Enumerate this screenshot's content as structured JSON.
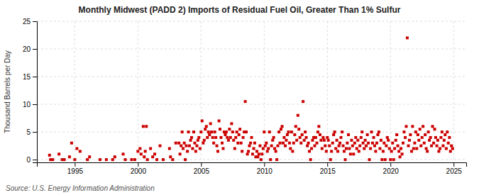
{
  "chart_data": {
    "type": "scatter",
    "title": "Monthly Midwest (PADD 2) Imports of Residual Fuel Oil, Greater Than 1% Sulfur",
    "ylabel": "Thousand Barrels per Day",
    "source": "Source: U.S. Energy Information Administration",
    "color": "#cc0000",
    "marker": "square",
    "grid": true,
    "xlim": [
      1992.0,
      2026.0
    ],
    "ylim": [
      -0.5,
      25
    ],
    "xticks": [
      1995,
      2000,
      2005,
      2010,
      2015,
      2020,
      2025
    ],
    "yticks": [
      0,
      5,
      10,
      15,
      20,
      25
    ],
    "x": [
      1993.0,
      1993.75,
      1994.58,
      1994.75,
      1995.17,
      1995.42,
      1996.17,
      1997.0,
      1998.17,
      1998.83,
      1999.5,
      2000.0,
      2000.17,
      2000.25,
      2000.42,
      2000.5,
      2000.58,
      2000.67,
      2001.0,
      2001.17,
      2001.33,
      2001.75,
      2002.5,
      2002.58,
      2003.0,
      2003.25,
      2003.33,
      2003.42,
      2003.5,
      2003.58,
      2003.67,
      2003.83,
      2003.92,
      2004.0,
      2004.08,
      2004.17,
      2004.25,
      2004.33,
      2004.42,
      2004.5,
      2004.58,
      2004.67,
      2004.75,
      2004.83,
      2004.92,
      2005.0,
      2005.08,
      2005.17,
      2005.25,
      2005.33,
      2005.42,
      2005.5,
      2005.58,
      2005.67,
      2005.75,
      2005.83,
      2005.92,
      2006.0,
      2006.08,
      2006.17,
      2006.25,
      2006.33,
      2006.42,
      2006.5,
      2006.58,
      2006.67,
      2006.75,
      2006.83,
      2006.92,
      2007.0,
      2007.08,
      2007.17,
      2007.25,
      2007.33,
      2007.42,
      2007.5,
      2007.58,
      2007.67,
      2007.75,
      2007.83,
      2007.92,
      2008.0,
      2008.08,
      2008.17,
      2008.25,
      2008.33,
      2008.42,
      2008.5,
      2008.58,
      2008.67,
      2008.75,
      2008.83,
      2008.92,
      2009.0,
      2009.08,
      2009.17,
      2009.25,
      2009.33,
      2009.42,
      2009.5,
      2009.58,
      2009.67,
      2009.83,
      2009.92,
      2010.0,
      2010.08,
      2010.17,
      2010.25,
      2010.33,
      2010.42,
      2010.58,
      2010.67,
      2010.75,
      2010.83,
      2010.92,
      2011.08,
      2011.17,
      2011.25,
      2011.33,
      2011.42,
      2011.5,
      2011.58,
      2011.67,
      2011.75,
      2011.83,
      2011.92,
      2012.0,
      2012.08,
      2012.17,
      2012.25,
      2012.33,
      2012.42,
      2012.5,
      2012.58,
      2012.67,
      2012.75,
      2012.83,
      2012.92,
      2013.0,
      2013.08,
      2013.17,
      2013.25,
      2013.33,
      2013.42,
      2013.5,
      2013.58,
      2013.75,
      2013.83,
      2013.92,
      2014.0,
      2014.08,
      2014.17,
      2014.25,
      2014.33,
      2014.42,
      2014.5,
      2014.58,
      2014.67,
      2014.75,
      2014.83,
      2014.92,
      2015.0,
      2015.08,
      2015.17,
      2015.33,
      2015.42,
      2015.5,
      2015.58,
      2015.67,
      2015.75,
      2015.83,
      2015.92,
      2016.0,
      2016.08,
      2016.17,
      2016.25,
      2016.33,
      2016.5,
      2016.58,
      2016.67,
      2016.75,
      2016.83,
      2016.92,
      2017.0,
      2017.08,
      2017.17,
      2017.25,
      2017.33,
      2017.42,
      2017.5,
      2017.58,
      2017.67,
      2017.75,
      2017.83,
      2017.92,
      2018.0,
      2018.08,
      2018.17,
      2018.25,
      2018.42,
      2018.5,
      2018.58,
      2018.67,
      2018.75,
      2018.83,
      2018.92,
      2019.0,
      2019.08,
      2019.17,
      2019.25,
      2019.42,
      2019.5,
      2019.67,
      2019.75,
      2019.83,
      2019.92,
      2020.08,
      2020.17,
      2020.33,
      2020.42,
      2020.5,
      2020.58,
      2020.67,
      2020.75,
      2020.83,
      2020.92,
      2021.0,
      2021.08,
      2021.17,
      2021.25,
      2021.33,
      2021.42,
      2021.5,
      2021.58,
      2021.67,
      2021.75,
      2021.83,
      2021.92,
      2022.0,
      2022.08,
      2022.17,
      2022.25,
      2022.33,
      2022.42,
      2022.5,
      2022.58,
      2022.67,
      2022.75,
      2022.83,
      2022.92,
      2023.0,
      2023.08,
      2023.17,
      2023.25,
      2023.33,
      2023.42,
      2023.5,
      2023.58,
      2023.67,
      2023.75,
      2023.83,
      2023.92,
      2024.0,
      2024.08,
      2024.17,
      2024.25,
      2024.33,
      2024.42,
      2024.5,
      2024.58,
      2024.67,
      2024.75,
      2024.83,
      2024.92,
      1993.08,
      1993.25,
      1994.0,
      1994.17,
      1995.0,
      1996.0,
      1997.5,
      1998.0,
      1999.0,
      1999.75,
      2000.75,
      2001.5,
      2002.0,
      2002.75,
      2003.75,
      2009.75,
      2010.5,
      2011.0,
      2013.67,
      2015.25,
      2016.42,
      2018.33,
      2019.33,
      2019.58,
      2020.0,
      2020.25
    ],
    "values": [
      0.8,
      1.0,
      0.5,
      3.0,
      2.0,
      1.5,
      0.5,
      0.0,
      0.5,
      1.0,
      0.0,
      1.5,
      2.0,
      1.0,
      6.0,
      0.5,
      1.5,
      6.0,
      2.0,
      0.5,
      1.0,
      2.5,
      2.0,
      0.5,
      3.0,
      3.0,
      1.0,
      2.5,
      5.0,
      2.0,
      3.0,
      2.5,
      1.5,
      5.0,
      2.5,
      3.5,
      4.0,
      2.0,
      5.0,
      3.0,
      1.5,
      2.5,
      3.5,
      4.0,
      2.0,
      5.0,
      7.0,
      3.0,
      3.5,
      5.5,
      6.0,
      4.0,
      5.0,
      4.5,
      6.5,
      5.0,
      4.0,
      3.0,
      5.0,
      4.0,
      2.5,
      1.5,
      7.0,
      5.5,
      4.0,
      3.0,
      2.0,
      5.0,
      4.5,
      5.0,
      4.0,
      3.5,
      5.5,
      4.0,
      6.5,
      5.0,
      3.5,
      2.0,
      4.0,
      5.0,
      3.0,
      4.5,
      5.5,
      3.0,
      1.5,
      4.0,
      5.0,
      10.5,
      5.0,
      1.0,
      1.5,
      2.5,
      3.0,
      4.0,
      1.0,
      2.0,
      3.0,
      0.5,
      1.5,
      0.5,
      1.0,
      2.5,
      1.0,
      2.0,
      5.0,
      2.5,
      3.0,
      1.5,
      2.0,
      5.0,
      2.5,
      3.5,
      4.0,
      2.0,
      1.5,
      2.5,
      5.0,
      3.0,
      5.5,
      6.0,
      3.0,
      4.0,
      2.5,
      3.5,
      4.5,
      5.0,
      3.0,
      2.0,
      5.0,
      1.5,
      3.0,
      4.5,
      6.0,
      3.5,
      8.0,
      5.5,
      4.0,
      3.0,
      4.5,
      10.5,
      3.5,
      5.0,
      4.0,
      2.5,
      3.0,
      1.5,
      2.0,
      3.5,
      4.0,
      2.5,
      4.0,
      3.0,
      5.0,
      6.0,
      4.5,
      3.5,
      2.0,
      4.0,
      3.5,
      2.5,
      1.5,
      4.0,
      3.5,
      2.5,
      1.5,
      3.0,
      4.5,
      5.0,
      2.0,
      3.5,
      1.5,
      2.5,
      3.0,
      4.0,
      5.0,
      2.5,
      1.5,
      2.0,
      3.0,
      4.5,
      2.0,
      1.0,
      3.5,
      2.5,
      1.0,
      3.0,
      4.0,
      2.0,
      3.5,
      1.5,
      2.5,
      4.0,
      5.0,
      3.0,
      2.0,
      3.5,
      2.5,
      4.5,
      3.0,
      2.0,
      5.0,
      3.0,
      4.0,
      2.5,
      1.5,
      3.0,
      4.5,
      5.0,
      2.0,
      3.5,
      1.5,
      3.0,
      2.5,
      4.0,
      3.5,
      2.0,
      1.5,
      3.0,
      2.0,
      3.5,
      4.5,
      2.5,
      1.5,
      0.5,
      2.0,
      1.0,
      3.0,
      5.0,
      4.0,
      6.0,
      22.0,
      2.5,
      3.5,
      4.5,
      1.5,
      6.0,
      2.0,
      3.0,
      5.0,
      2.0,
      4.5,
      3.5,
      5.5,
      2.5,
      4.0,
      6.0,
      3.0,
      4.5,
      2.0,
      1.5,
      5.0,
      3.5,
      4.0,
      2.5,
      6.0,
      3.0,
      5.5,
      4.0,
      2.5,
      3.5,
      1.5,
      2.0,
      4.0,
      5.0,
      2.5,
      3.5,
      4.5,
      2.0,
      5.0,
      3.0,
      4.0,
      1.5,
      2.5,
      2.0,
      0.0,
      0.0,
      0.0,
      0.0,
      0.0,
      0.0,
      0.0,
      0.0,
      0.0,
      0.0,
      0.0,
      0.0,
      0.0,
      0.0,
      0.0,
      0.0,
      0.0,
      0.0,
      0.0,
      0.0,
      0.0,
      0.0,
      0.0,
      0.0,
      0.0,
      0.0
    ]
  }
}
